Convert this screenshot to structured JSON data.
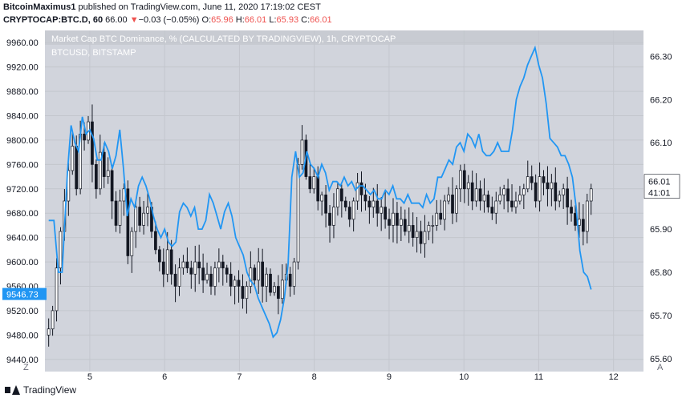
{
  "header": {
    "author": "BitcoinMaximus1",
    "published_text": " published on TradingView.com, June 11, 2020 17:19:02 CEST",
    "symbol": "CRYPTOCAP:BTC.D, 60",
    "last": "66.00",
    "change_arrow": "▼",
    "change": "−0.03 (−0.05%)",
    "o_label": "O:",
    "o_value": "65.96",
    "h_label": "H:",
    "h_value": "66.01",
    "l_label": "L:",
    "l_value": "65.93",
    "c_label": "C:",
    "c_value": "66.01"
  },
  "chart_data": {
    "type": "line",
    "title": "Market Cap BTC Dominance, % (CALCULATED BY TRADINGVIEW), 1h, CRYPTOCAP",
    "subtitle": "BTCUSD, BITSTAMP",
    "x_ticks": [
      "5",
      "6",
      "7",
      "8",
      "9",
      "10",
      "11",
      "12"
    ],
    "y_left": {
      "ticks": [
        "9960.00",
        "9920.00",
        "9880.00",
        "9840.00",
        "9800.00",
        "9760.00",
        "9720.00",
        "9680.00",
        "9640.00",
        "9600.00",
        "9560.00",
        "9520.00",
        "9480.00",
        "9440.00"
      ],
      "range": [
        9420,
        9980
      ],
      "current": "9546.73"
    },
    "y_right": {
      "ticks": [
        "66.30",
        "66.20",
        "66.10",
        "66.00",
        "65.90",
        "65.80",
        "65.70",
        "65.60"
      ],
      "range": [
        65.57,
        66.36
      ],
      "current": "66.01",
      "countdown": "41:01"
    },
    "series": [
      {
        "kind": "line",
        "color": "#2196f3",
        "x": [
          4.45,
          4.52,
          4.58,
          4.63,
          4.7,
          4.75,
          4.8,
          4.85,
          4.9,
          4.95,
          5.0,
          5.05,
          5.1,
          5.15,
          5.2,
          5.25,
          5.3,
          5.35,
          5.4,
          5.45,
          5.5,
          5.55,
          5.6,
          5.65,
          5.7,
          5.75,
          5.8,
          5.85,
          5.9,
          5.95,
          6.0,
          6.05,
          6.1,
          6.15,
          6.2,
          6.25,
          6.3,
          6.35,
          6.4,
          6.45,
          6.5,
          6.55,
          6.6,
          6.65,
          6.7,
          6.75,
          6.8,
          6.85,
          6.9,
          6.95,
          7.0,
          7.05,
          7.1,
          7.15,
          7.2,
          7.25,
          7.3,
          7.35,
          7.4,
          7.45,
          7.5,
          7.55,
          7.6,
          7.65,
          7.7,
          7.75,
          7.8,
          7.85,
          7.9,
          7.95,
          8.0,
          8.05,
          8.1,
          8.15,
          8.2,
          8.25,
          8.3,
          8.35,
          8.4,
          8.45,
          8.5,
          8.55,
          8.6,
          8.65,
          8.7,
          8.75,
          8.8,
          8.85,
          8.9,
          8.95,
          9.0,
          9.05,
          9.1,
          9.15,
          9.2,
          9.25,
          9.3,
          9.35,
          9.4,
          9.45,
          9.5,
          9.55,
          9.6,
          9.65,
          9.7,
          9.75,
          9.8,
          9.85,
          9.9,
          9.95,
          10.0,
          10.05,
          10.1,
          10.15,
          10.2,
          10.25,
          10.3,
          10.35,
          10.4,
          10.45,
          10.5,
          10.55,
          10.6,
          10.65,
          10.7,
          10.75,
          10.8,
          10.85,
          10.9,
          10.95,
          11.0,
          11.05,
          11.1,
          11.15,
          11.2,
          11.25,
          11.3,
          11.35,
          11.4,
          11.45,
          11.5,
          11.55,
          11.6,
          11.65,
          11.7
        ],
        "y": [
          65.92,
          65.92,
          65.8,
          65.8,
          66.03,
          66.14,
          66.1,
          66.08,
          66.16,
          66.12,
          66.13,
          66.11,
          66.06,
          66.06,
          66.1,
          66.08,
          66.04,
          66.07,
          66.13,
          66.04,
          65.93,
          65.97,
          65.95,
          66.0,
          66.02,
          66.0,
          65.97,
          65.93,
          65.9,
          65.88,
          65.9,
          65.87,
          65.86,
          65.87,
          65.94,
          65.96,
          65.95,
          65.93,
          65.95,
          65.9,
          65.9,
          65.92,
          65.98,
          65.96,
          65.93,
          65.9,
          65.94,
          65.96,
          65.93,
          65.88,
          65.86,
          65.84,
          65.8,
          65.78,
          65.77,
          65.74,
          65.72,
          65.7,
          65.68,
          65.65,
          65.66,
          65.69,
          65.74,
          65.82,
          66.02,
          66.08,
          66.02,
          66.03,
          66.08,
          66.05,
          66.04,
          66.02,
          66.05,
          66.03,
          65.99,
          66.01,
          66.01,
          66.0,
          66.02,
          66.0,
          66.01,
          65.99,
          66.0,
          66.0,
          65.99,
          65.98,
          65.99,
          65.97,
          65.97,
          65.99,
          65.98,
          66.0,
          65.97,
          65.97,
          65.96,
          65.98,
          65.96,
          65.96,
          65.96,
          65.95,
          65.98,
          65.96,
          65.97,
          66.02,
          66.02,
          66.04,
          66.06,
          66.05,
          66.09,
          66.1,
          66.08,
          66.12,
          66.11,
          66.09,
          66.12,
          66.08,
          66.07,
          66.07,
          66.08,
          66.1,
          66.08,
          66.08,
          66.08,
          66.13,
          66.2,
          66.23,
          66.25,
          66.28,
          66.3,
          66.32,
          66.28,
          66.25,
          66.19,
          66.11,
          66.1,
          66.09,
          66.07,
          66.07,
          66.05,
          66.02,
          65.95,
          65.85,
          65.8,
          65.79,
          65.76
        ]
      }
    ],
    "candles_note": "BTCUSD hourly candles, price scale on left axis",
    "candles_close": [
      9490,
      9520,
      9590,
      9650,
      9700,
      9750,
      9790,
      9720,
      9810,
      9800,
      9830,
      9760,
      9720,
      9780,
      9740,
      9750,
      9700,
      9660,
      9700,
      9720,
      9610,
      9650,
      9690,
      9660,
      9680,
      9690,
      9650,
      9620,
      9600,
      9580,
      9620,
      9580,
      9560,
      9590,
      9600,
      9590,
      9580,
      9600,
      9590,
      9570,
      9580,
      9560,
      9590,
      9600,
      9590,
      9580,
      9560,
      9570,
      9560,
      9540,
      9560,
      9590,
      9570,
      9600,
      9560,
      9580,
      9550,
      9560,
      9540,
      9570,
      9580,
      9560,
      9600,
      9760,
      9800,
      9740,
      9720,
      9740,
      9700,
      9710,
      9680,
      9660,
      9690,
      9720,
      9700,
      9690,
      9670,
      9700,
      9730,
      9710,
      9700,
      9690,
      9700,
      9680,
      9690,
      9670,
      9660,
      9680,
      9660,
      9670,
      9650,
      9660,
      9640,
      9650,
      9630,
      9650,
      9660,
      9660,
      9680,
      9670,
      9700,
      9710,
      9680,
      9720,
      9750,
      9720,
      9730,
      9700,
      9720,
      9700,
      9710,
      9690,
      9680,
      9700,
      9710,
      9720,
      9700,
      9690,
      9700,
      9710,
      9720,
      9740,
      9730,
      9700,
      9740,
      9730,
      9720,
      9730,
      9700,
      9710,
      9720,
      9690,
      9680,
      9660,
      9670,
      9650,
      9700,
      9720
    ],
    "grid": true
  },
  "axis_icons": {
    "left_corner": "Z",
    "right_corner": "A"
  },
  "footer": {
    "brand": "TradingView"
  }
}
